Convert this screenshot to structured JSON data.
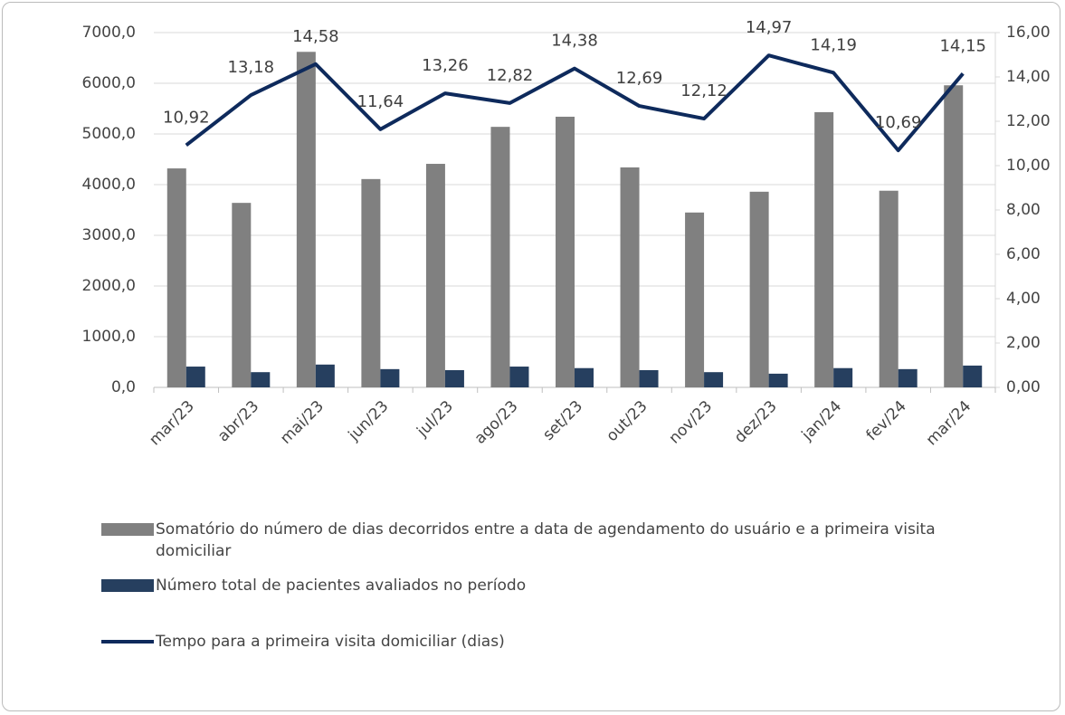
{
  "chart_data": {
    "type": "bar",
    "categories": [
      "mar/23",
      "abr/23",
      "mai/23",
      "jun/23",
      "jul/23",
      "ago/23",
      "set/23",
      "out/23",
      "nov/23",
      "dez/23",
      "jan/24",
      "fev/24",
      "mar/24"
    ],
    "series": [
      {
        "name": "Somatório do número de dias decorridos entre a data de agendamento do usuário e a primeira visita domiciliar",
        "type": "bar",
        "color": "#808080",
        "values": [
          4320,
          3640,
          6620,
          4110,
          4410,
          5140,
          5340,
          4340,
          3450,
          3860,
          5430,
          3880,
          5960
        ]
      },
      {
        "name": "Número total de pacientes avaliados no período",
        "type": "bar",
        "color": "#263f5f",
        "values": [
          410,
          300,
          450,
          360,
          340,
          410,
          380,
          340,
          300,
          270,
          380,
          360,
          430
        ]
      },
      {
        "name": "Tempo para a primeira visita domiciliar (dias)",
        "type": "line",
        "axis": "y2",
        "color": "#0e2a5c",
        "values": [
          10.92,
          13.18,
          14.58,
          11.64,
          13.26,
          12.82,
          14.38,
          12.69,
          12.12,
          14.97,
          14.19,
          10.69,
          14.15
        ],
        "value_labels": [
          "10,92",
          "13,18",
          "14,58",
          "11,64",
          "13,26",
          "12,82",
          "14,38",
          "12,69",
          "12,12",
          "14,97",
          "14,19",
          "10,69",
          "14,15"
        ]
      }
    ],
    "ylim": [
      0,
      7000
    ],
    "yticks": [
      {
        "value": 0,
        "label": "0,0"
      },
      {
        "value": 1000,
        "label": "1000,0"
      },
      {
        "value": 2000,
        "label": "2000,0"
      },
      {
        "value": 3000,
        "label": "3000,0"
      },
      {
        "value": 4000,
        "label": "4000,0"
      },
      {
        "value": 5000,
        "label": "5000,0"
      },
      {
        "value": 6000,
        "label": "6000,0"
      },
      {
        "value": 7000,
        "label": "7000,0"
      }
    ],
    "y2lim": [
      0,
      16
    ],
    "y2ticks": [
      {
        "value": 0,
        "label": "0,00"
      },
      {
        "value": 2,
        "label": "2,00"
      },
      {
        "value": 4,
        "label": "4,00"
      },
      {
        "value": 6,
        "label": "6,00"
      },
      {
        "value": 8,
        "label": "8,00"
      },
      {
        "value": 10,
        "label": "10,00"
      },
      {
        "value": 12,
        "label": "12,00"
      },
      {
        "value": 14,
        "label": "14,00"
      },
      {
        "value": 16,
        "label": "16,00"
      }
    ],
    "grid": true,
    "legend": "bottom"
  }
}
